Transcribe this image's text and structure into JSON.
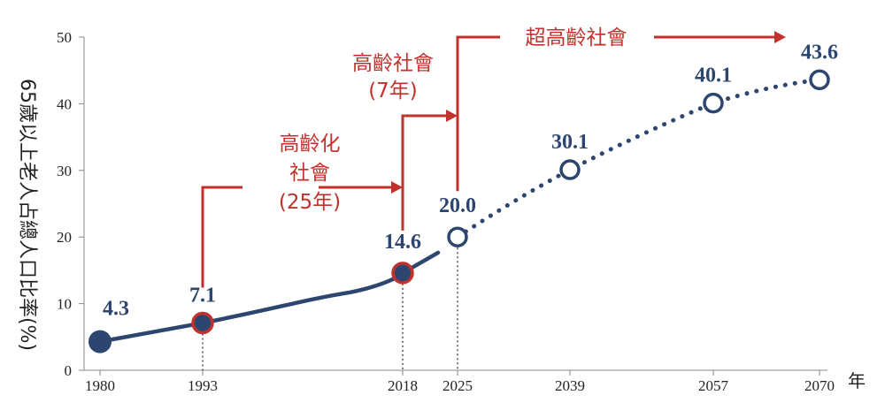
{
  "chart_data": {
    "type": "line",
    "ylabel": "65歲以上老人占總人口比率(%)",
    "xunit": "年",
    "ylim": [
      0,
      50
    ],
    "yticks": [
      0,
      10,
      20,
      30,
      40,
      50
    ],
    "x": [
      1980,
      1993,
      2018,
      2025,
      2039,
      2057,
      2070
    ],
    "values": [
      4.3,
      7.1,
      14.6,
      20.0,
      30.1,
      40.1,
      43.6
    ],
    "labels": [
      "4.3",
      "7.1",
      "14.6",
      "20.0",
      "30.1",
      "40.1",
      "43.6"
    ],
    "actual_until": 2018,
    "projected_from": 2025,
    "dashed_drop_lines": [
      1993,
      2018,
      2025
    ],
    "colors": {
      "series": "#2c4670",
      "annotation": "#c0322b",
      "marker_fill": "#2c4670",
      "highlight_outline": "#c0322b"
    },
    "annotations": [
      {
        "lines": [
          "高齡化",
          "社會",
          "(25年)"
        ],
        "from": 1993,
        "to": 2018
      },
      {
        "lines": [
          "高齡社會",
          "(7年)"
        ],
        "from": 2018,
        "to": 2025
      },
      {
        "lines": [
          "超高齡社會"
        ],
        "from": 2025,
        "to": 2070
      }
    ]
  }
}
